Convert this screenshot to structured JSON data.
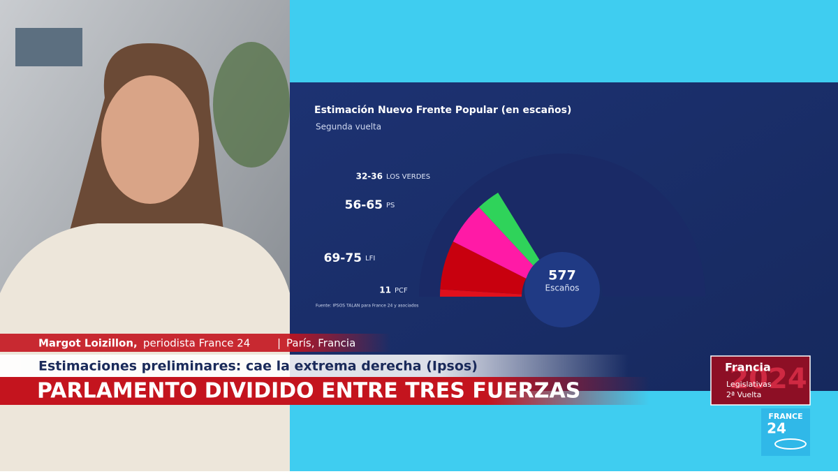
{
  "chart_data": {
    "type": "hemicycle",
    "title": "Estimación Nuevo Frente Popular (en escaños)",
    "subtitle": "Segunda vuelta",
    "source": "Fuente: IPSOS TALAN para France 24 y asociados",
    "categories": [
      "PCF",
      "LFI",
      "PS",
      "LOS VERDES"
    ],
    "low": [
      11,
      69,
      56,
      32
    ],
    "high": [
      11,
      75,
      65,
      36
    ],
    "value_labels": [
      "11",
      "69-75",
      "56-65",
      "32-36"
    ],
    "colors": [
      "#e0101c",
      "#c8000e",
      "#ff1aa6",
      "#2fd35a"
    ],
    "total": 577,
    "total_label": "Escaños"
  },
  "lower_third": {
    "name": "Margot Loizillon,",
    "role": "periodista France 24",
    "place": "París, Francia",
    "kicker": "Estimaciones preliminares: cae la extrema derecha (Ipsos)",
    "headline": "PARLAMENTO DIVIDIDO ENTRE TRES FUERZAS"
  },
  "badge": {
    "country": "Francia",
    "year": "2024",
    "line1": "Legislativas",
    "line2": "2ª Vuelta"
  },
  "logo": {
    "brand": "FRANCE",
    "number": "24"
  }
}
